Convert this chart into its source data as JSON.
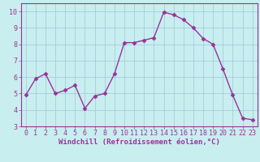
{
  "x": [
    0,
    1,
    2,
    3,
    4,
    5,
    6,
    7,
    8,
    9,
    10,
    11,
    12,
    13,
    14,
    15,
    16,
    17,
    18,
    19,
    20,
    21,
    22,
    23
  ],
  "y": [
    4.9,
    5.9,
    6.2,
    5.0,
    5.2,
    5.5,
    4.1,
    4.85,
    5.0,
    6.2,
    8.1,
    8.1,
    8.25,
    8.4,
    9.95,
    9.8,
    9.5,
    9.0,
    8.35,
    8.0,
    6.5,
    4.9,
    3.5,
    3.4
  ],
  "line_color": "#993399",
  "marker": "D",
  "markersize": 2.5,
  "linewidth": 1.0,
  "xlabel": "Windchill (Refroidissement éolien,°C)",
  "ylabel": "",
  "xlim": [
    -0.5,
    23.5
  ],
  "ylim": [
    3.0,
    10.5
  ],
  "yticks": [
    3,
    4,
    5,
    6,
    7,
    8,
    9,
    10
  ],
  "xticks": [
    0,
    1,
    2,
    3,
    4,
    5,
    6,
    7,
    8,
    9,
    10,
    11,
    12,
    13,
    14,
    15,
    16,
    17,
    18,
    19,
    20,
    21,
    22,
    23
  ],
  "bg_color": "#c8eef0",
  "grid_color": "#a0c8d8",
  "xlabel_fontsize": 6.5,
  "tick_fontsize": 6.0,
  "fig_width": 3.2,
  "fig_height": 2.0,
  "dpi": 100
}
